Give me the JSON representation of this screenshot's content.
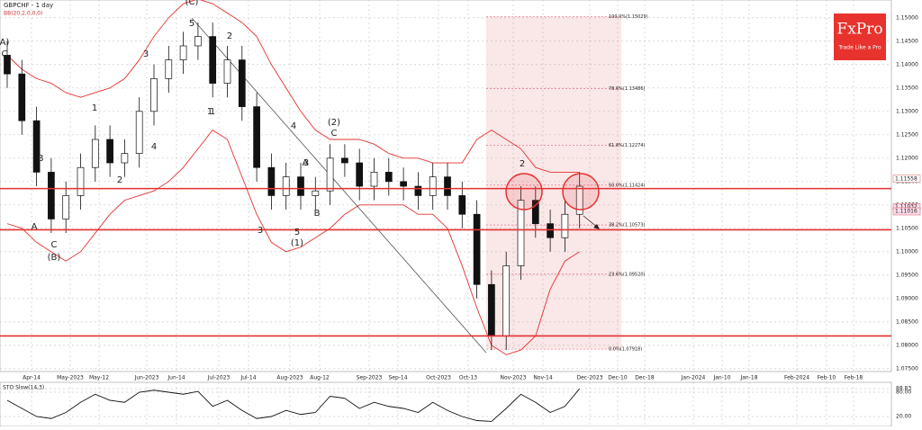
{
  "chart_data": {
    "type": "candlestick",
    "title": "GBPCHF - 1 day",
    "subtitle": "BB(20,2,0,0,0)",
    "brand": "FxPro",
    "tagline": "Trade Like a Pro",
    "open": [
      1.142,
      1.138,
      1.128,
      1.117,
      1.107,
      1.112,
      1.118,
      1.124,
      1.119,
      1.121,
      1.13,
      1.137,
      1.141,
      1.144,
      1.146,
      1.136,
      1.141,
      1.131,
      1.118,
      1.112,
      1.116,
      1.112,
      1.113,
      1.12,
      1.119,
      1.114,
      1.117,
      1.115,
      1.114,
      1.112,
      1.116,
      1.112,
      1.108,
      1.093,
      1.082,
      1.097,
      1.111,
      1.106,
      1.103,
      1.108
    ],
    "high": [
      1.145,
      1.141,
      1.131,
      1.12,
      1.115,
      1.121,
      1.127,
      1.127,
      1.124,
      1.133,
      1.14,
      1.144,
      1.147,
      1.149,
      1.149,
      1.144,
      1.144,
      1.134,
      1.121,
      1.119,
      1.119,
      1.116,
      1.123,
      1.123,
      1.122,
      1.12,
      1.12,
      1.118,
      1.117,
      1.119,
      1.119,
      1.115,
      1.111,
      1.096,
      1.1,
      1.114,
      1.114,
      1.109,
      1.111,
      1.117
    ],
    "low": [
      1.135,
      1.125,
      1.114,
      1.104,
      1.104,
      1.109,
      1.115,
      1.116,
      1.116,
      1.118,
      1.127,
      1.134,
      1.138,
      1.141,
      1.133,
      1.133,
      1.128,
      1.115,
      1.109,
      1.109,
      1.109,
      1.109,
      1.11,
      1.116,
      1.111,
      1.111,
      1.112,
      1.111,
      1.109,
      1.109,
      1.109,
      1.105,
      1.09,
      1.079,
      1.079,
      1.094,
      1.103,
      1.1,
      1.1,
      1.105
    ],
    "close": [
      1.138,
      1.128,
      1.117,
      1.107,
      1.112,
      1.118,
      1.124,
      1.119,
      1.121,
      1.13,
      1.137,
      1.141,
      1.144,
      1.146,
      1.136,
      1.141,
      1.131,
      1.118,
      1.112,
      1.116,
      1.112,
      1.113,
      1.12,
      1.119,
      1.114,
      1.117,
      1.115,
      1.114,
      1.112,
      1.116,
      1.112,
      1.108,
      1.093,
      1.082,
      1.097,
      1.111,
      1.106,
      1.103,
      1.108,
      1.114
    ],
    "bb_upper": [
      1.142,
      1.139,
      1.137,
      1.136,
      1.134,
      1.133,
      1.134,
      1.135,
      1.137,
      1.141,
      1.146,
      1.15,
      1.153,
      1.154,
      1.153,
      1.151,
      1.149,
      1.146,
      1.14,
      1.135,
      1.13,
      1.126,
      1.124,
      1.124,
      1.124,
      1.123,
      1.121,
      1.12,
      1.12,
      1.119,
      1.119,
      1.119,
      1.124,
      1.126,
      1.124,
      1.122,
      1.118,
      1.117,
      1.117,
      1.117
    ],
    "bb_lower": [
      1.106,
      1.105,
      1.102,
      1.1,
      1.098,
      1.1,
      1.104,
      1.108,
      1.111,
      1.112,
      1.113,
      1.115,
      1.118,
      1.122,
      1.126,
      1.124,
      1.116,
      1.108,
      1.102,
      1.1,
      1.101,
      1.103,
      1.105,
      1.108,
      1.11,
      1.11,
      1.11,
      1.11,
      1.108,
      1.108,
      1.105,
      1.097,
      1.088,
      1.08,
      1.078,
      1.079,
      1.082,
      1.092,
      1.098,
      1.1
    ],
    "ylim": [
      1.0744,
      1.1538
    ],
    "yticks": [
      {
        "value": 1.075,
        "label": "1.07500"
      },
      {
        "value": 1.08,
        "label": "1.08000"
      },
      {
        "value": 1.085,
        "label": "1.08500"
      },
      {
        "value": 1.09,
        "label": "1.09000"
      },
      {
        "value": 1.095,
        "label": "1.09500"
      },
      {
        "value": 1.1,
        "label": "1.10000"
      },
      {
        "value": 1.105,
        "label": "1.10500"
      },
      {
        "value": 1.11,
        "label": "1.11000"
      },
      {
        "value": 1.115,
        "label": "1.11500"
      },
      {
        "value": 1.12,
        "label": "1.12000"
      },
      {
        "value": 1.125,
        "label": "1.12500"
      },
      {
        "value": 1.13,
        "label": "1.13000"
      },
      {
        "value": 1.135,
        "label": "1.13500"
      },
      {
        "value": 1.14,
        "label": "1.14000"
      },
      {
        "value": 1.145,
        "label": "1.14500"
      },
      {
        "value": 1.15,
        "label": "1.15000"
      }
    ],
    "xlabels": [
      "Apr-14",
      "May-2023",
      "May-12",
      "Jun-2023",
      "Jun-14",
      "Jul-2023",
      "Jul-14",
      "Aug-2023",
      "Aug-12",
      "Sep-2023",
      "Sep-14",
      "Oct-2023",
      "Oct-13",
      "Nov-2023",
      "Nov-14",
      "Dec-2023",
      "Dec-10",
      "Dec-18",
      "Jan-2024",
      "Jan-10",
      "Jan-18",
      "Feb-2024",
      "Feb-10",
      "Feb-18"
    ],
    "levels": [
      1.1135,
      1.1047,
      1.082
    ],
    "fib_levels": [
      {
        "value": 1.15029,
        "label": "100.0%(1.15029)"
      },
      {
        "value": 1.13486,
        "label": "78.6%(1.13486)"
      },
      {
        "value": 1.12274,
        "label": "61.8%(1.12274)"
      },
      {
        "value": 1.11424,
        "label": "50.0%(1.11424)"
      },
      {
        "value": 1.10573,
        "label": "38.2%(1.10573)"
      },
      {
        "value": 1.0952,
        "label": "23.6%(1.09520)"
      },
      {
        "value": 1.07918,
        "label": "0.0%(1.07918)"
      }
    ],
    "price_labels": [
      {
        "value": 1.11558,
        "label": "1.11558"
      },
      {
        "value": 1.11032,
        "label": "1.11032"
      },
      {
        "value": 1.11016,
        "label": "1.11016"
      }
    ],
    "annotations": [
      "(C)",
      "5",
      "A)",
      "C",
      "3",
      "1",
      "2",
      "4",
      "5",
      "(1)",
      "(2)",
      "C",
      "B",
      "A",
      "C",
      "(B)",
      "2",
      "1",
      "3",
      "1",
      "2",
      "4",
      "3",
      "A",
      "B"
    ],
    "sto": {
      "title": "STO Slow(14,3)",
      "values": [
        60,
        40,
        20,
        15,
        30,
        55,
        75,
        60,
        55,
        80,
        85,
        80,
        75,
        82,
        45,
        60,
        35,
        15,
        20,
        35,
        25,
        30,
        70,
        65,
        40,
        55,
        45,
        40,
        30,
        55,
        35,
        20,
        10,
        8,
        40,
        75,
        55,
        30,
        45,
        88.83
      ],
      "ylim": [
        0,
        100
      ],
      "yticks": [
        {
          "value": 88.83,
          "label": "88.83"
        },
        {
          "value": 80,
          "label": "80.00"
        },
        {
          "value": 20,
          "label": "20.00"
        }
      ]
    }
  }
}
